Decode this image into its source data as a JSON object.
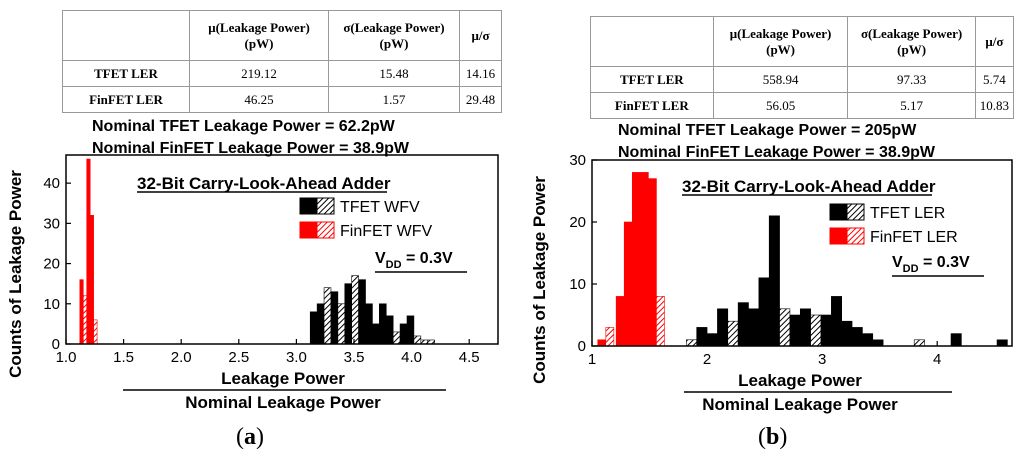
{
  "panels": [
    {
      "label": "a",
      "table": {
        "headers": [
          "",
          "μ(Leakage Power) (pW)",
          "σ(Leakage Power) (pW)",
          "μ/σ"
        ],
        "rows": [
          {
            "name": "TFET LER",
            "mu": "219.12",
            "sigma": "15.48",
            "ratio": "14.16"
          },
          {
            "name": "FinFET LER",
            "mu": "46.25",
            "sigma": "1.57",
            "ratio": "29.48"
          }
        ]
      },
      "nominal": [
        "Nominal TFET Leakage Power = 62.2pW",
        "Nominal FinFET Leakage Power = 38.9pW"
      ]
    },
    {
      "label": "b",
      "table": {
        "headers": [
          "",
          "μ(Leakage Power) (pW)",
          "σ(Leakage Power) (pW)",
          "μ/σ"
        ],
        "rows": [
          {
            "name": "TFET LER",
            "mu": "558.94",
            "sigma": "97.33",
            "ratio": "5.74"
          },
          {
            "name": "FinFET LER",
            "mu": "56.05",
            "sigma": "5.17",
            "ratio": "10.83"
          }
        ]
      },
      "nominal": [
        "Nominal TFET Leakage Power = 205pW",
        "Nominal FinFET Leakage Power = 38.9pW"
      ]
    }
  ],
  "chart_data": [
    {
      "type": "bar",
      "title": "32-Bit Carry-Look-Ahead Adder",
      "ylabel": "Counts of Leakage Power",
      "xlabel_top": "Leakage Power",
      "xlabel_bottom": "Nominal Leakage Power",
      "annotation": "V_DD = 0.3V",
      "vdd_main": "V",
      "vdd_sub": "DD",
      "vdd_rest": " = 0.3V",
      "xlim": [
        1.0,
        4.75
      ],
      "ylim": [
        0,
        47
      ],
      "xticks": [
        1.0,
        1.5,
        2.0,
        2.5,
        3.0,
        3.5,
        4.0,
        4.5
      ],
      "xtick_labels": [
        "1.0",
        "1.5",
        "2.0",
        "2.5",
        "3.0",
        "3.5",
        "4.0",
        "4.5"
      ],
      "yticks": [
        0,
        10,
        20,
        30,
        40
      ],
      "ytick_labels": [
        "0",
        "10",
        "20",
        "30",
        "40"
      ],
      "series": [
        {
          "name": "TFET WFV",
          "color": "#000000",
          "bin_width": 0.06,
          "bins": [
            {
              "x": 3.12,
              "h": 8,
              "p": "a"
            },
            {
              "x": 3.18,
              "h": 10,
              "p": "a"
            },
            {
              "x": 3.24,
              "h": 14,
              "p": "b"
            },
            {
              "x": 3.3,
              "h": 13,
              "p": "a"
            },
            {
              "x": 3.36,
              "h": 10,
              "p": "b"
            },
            {
              "x": 3.42,
              "h": 15,
              "p": "a"
            },
            {
              "x": 3.48,
              "h": 17,
              "p": "b"
            },
            {
              "x": 3.54,
              "h": 16,
              "p": "a"
            },
            {
              "x": 3.6,
              "h": 10,
              "p": "a"
            },
            {
              "x": 3.66,
              "h": 5,
              "p": "a"
            },
            {
              "x": 3.72,
              "h": 10,
              "p": "a"
            },
            {
              "x": 3.78,
              "h": 7,
              "p": "a"
            },
            {
              "x": 3.84,
              "h": 3,
              "p": "b"
            },
            {
              "x": 3.9,
              "h": 5,
              "p": "a"
            },
            {
              "x": 3.96,
              "h": 7,
              "p": "a"
            },
            {
              "x": 4.02,
              "h": 2,
              "p": "b"
            },
            {
              "x": 4.08,
              "h": 1,
              "p": "b"
            },
            {
              "x": 4.14,
              "h": 1,
              "p": "b"
            }
          ]
        },
        {
          "name": "FinFET WFV",
          "color": "#ff0000",
          "bin_width": 0.03,
          "bins": [
            {
              "x": 1.12,
              "h": 16,
              "p": "a"
            },
            {
              "x": 1.15,
              "h": 12,
              "p": "b"
            },
            {
              "x": 1.18,
              "h": 46,
              "p": "a"
            },
            {
              "x": 1.21,
              "h": 32,
              "p": "a"
            },
            {
              "x": 1.24,
              "h": 6,
              "p": "b"
            }
          ]
        }
      ]
    },
    {
      "type": "bar",
      "title": "32-Bit Carry-Look-Ahead Adder",
      "ylabel": "Counts of Leakage Power",
      "xlabel_top": "Leakage Power",
      "xlabel_bottom": "Nominal Leakage Power",
      "annotation": "V_DD = 0.3V",
      "vdd_main": "V",
      "vdd_sub": "DD",
      "vdd_rest": " = 0.3V",
      "xlim": [
        1.0,
        4.65
      ],
      "ylim": [
        0,
        30
      ],
      "xticks": [
        1,
        2,
        3,
        4
      ],
      "xtick_labels": [
        "1",
        "2",
        "3",
        "4"
      ],
      "yticks": [
        0,
        10,
        20,
        30
      ],
      "ytick_labels": [
        "0",
        "10",
        "20",
        "30"
      ],
      "series": [
        {
          "name": "TFET LER",
          "color": "#000000",
          "bin_width": 0.09,
          "bins": [
            {
              "x": 1.82,
              "h": 1,
              "p": "b"
            },
            {
              "x": 1.91,
              "h": 3,
              "p": "a"
            },
            {
              "x": 2.0,
              "h": 2,
              "p": "a"
            },
            {
              "x": 2.09,
              "h": 6,
              "p": "a"
            },
            {
              "x": 2.18,
              "h": 4,
              "p": "b"
            },
            {
              "x": 2.27,
              "h": 7,
              "p": "a"
            },
            {
              "x": 2.36,
              "h": 6,
              "p": "a"
            },
            {
              "x": 2.45,
              "h": 11,
              "p": "a"
            },
            {
              "x": 2.54,
              "h": 21,
              "p": "a"
            },
            {
              "x": 2.63,
              "h": 6,
              "p": "b"
            },
            {
              "x": 2.72,
              "h": 5,
              "p": "a"
            },
            {
              "x": 2.81,
              "h": 6,
              "p": "a"
            },
            {
              "x": 2.9,
              "h": 5,
              "p": "b"
            },
            {
              "x": 2.99,
              "h": 5,
              "p": "a"
            },
            {
              "x": 3.08,
              "h": 8,
              "p": "a"
            },
            {
              "x": 3.17,
              "h": 4,
              "p": "a"
            },
            {
              "x": 3.26,
              "h": 3,
              "p": "a"
            },
            {
              "x": 3.35,
              "h": 2,
              "p": "a"
            },
            {
              "x": 3.44,
              "h": 1,
              "p": "a"
            },
            {
              "x": 3.8,
              "h": 1,
              "p": "b"
            },
            {
              "x": 4.12,
              "h": 2,
              "p": "a"
            },
            {
              "x": 4.52,
              "h": 1,
              "p": "a"
            }
          ]
        },
        {
          "name": "FinFET LER",
          "color": "#ff0000",
          "bin_width": 0.07,
          "bins": [
            {
              "x": 1.05,
              "h": 1,
              "p": "a"
            },
            {
              "x": 1.12,
              "h": 3,
              "p": "b"
            },
            {
              "x": 1.21,
              "h": 8,
              "p": "a"
            },
            {
              "x": 1.28,
              "h": 20,
              "p": "a"
            },
            {
              "x": 1.35,
              "h": 28,
              "p": "a"
            },
            {
              "x": 1.42,
              "h": 28,
              "p": "a"
            },
            {
              "x": 1.49,
              "h": 27,
              "p": "a"
            },
            {
              "x": 1.56,
              "h": 8,
              "p": "b"
            }
          ]
        }
      ]
    }
  ]
}
